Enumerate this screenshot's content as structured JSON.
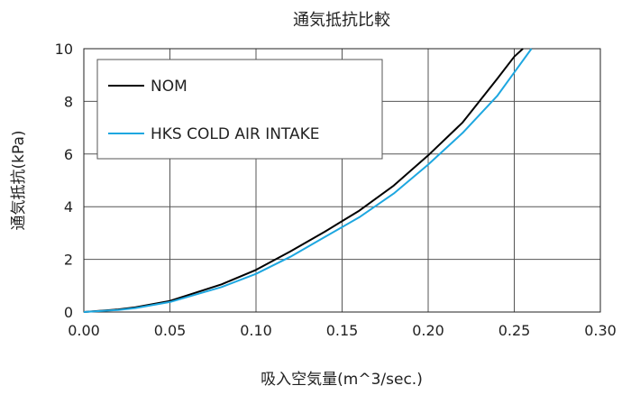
{
  "chart_data": {
    "type": "line",
    "title": "通気抵抗比較",
    "xlabel": "吸入空気量(m^3/sec.)",
    "ylabel": "通気抵抗(kPa)",
    "xlim": [
      0,
      0.3
    ],
    "ylim": [
      0,
      10
    ],
    "x_ticks": [
      "0.00",
      "0.05",
      "0.10",
      "0.15",
      "0.20",
      "0.25",
      "0.30"
    ],
    "y_ticks": [
      "0",
      "2",
      "4",
      "6",
      "8",
      "10"
    ],
    "grid": true,
    "legend_position": "top-left",
    "series": [
      {
        "name": "NOM",
        "color": "#000000",
        "x": [
          0,
          0.02,
          0.03,
          0.05,
          0.08,
          0.1,
          0.12,
          0.14,
          0.16,
          0.18,
          0.2,
          0.22,
          0.24,
          0.25,
          0.255
        ],
        "y": [
          0,
          0.1,
          0.18,
          0.42,
          1.05,
          1.6,
          2.3,
          3.05,
          3.85,
          4.8,
          5.95,
          7.2,
          8.85,
          9.7,
          10
        ]
      },
      {
        "name": "HKS COLD AIR INTAKE",
        "color": "#1ea7e0",
        "x": [
          0,
          0.02,
          0.03,
          0.05,
          0.08,
          0.1,
          0.12,
          0.14,
          0.16,
          0.18,
          0.2,
          0.22,
          0.24,
          0.25,
          0.26
        ],
        "y": [
          0,
          0.08,
          0.15,
          0.38,
          0.95,
          1.45,
          2.1,
          2.85,
          3.6,
          4.5,
          5.6,
          6.8,
          8.2,
          9.1,
          10
        ]
      }
    ]
  }
}
